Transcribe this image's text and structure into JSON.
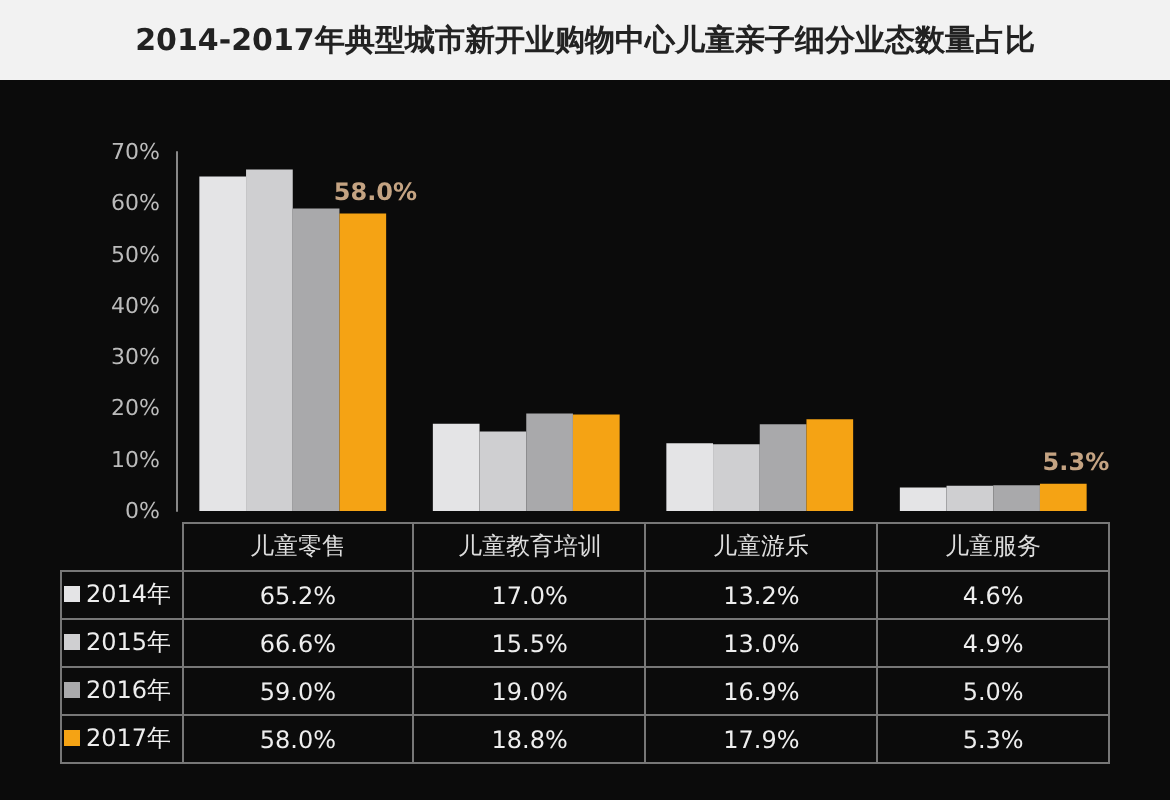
{
  "chart_data": {
    "type": "bar",
    "title": "2014-2017年典型城市新开业购物中心儿童亲子细分业态数量占比",
    "categories": [
      "儿童零售",
      "儿童教育培训",
      "儿童游乐",
      "儿童服务"
    ],
    "series": [
      {
        "name": "2014年",
        "color": "#e4e4e6",
        "values": [
          65.2,
          17.0,
          13.2,
          4.6
        ],
        "value_labels": [
          "65.2%",
          "17.0%",
          "13.2%",
          "4.6%"
        ]
      },
      {
        "name": "2015年",
        "color": "#cfcfd1",
        "values": [
          66.6,
          15.5,
          13.0,
          4.9
        ],
        "value_labels": [
          "66.6%",
          "15.5%",
          "13.0%",
          "4.9%"
        ]
      },
      {
        "name": "2016年",
        "color": "#a9a9ab",
        "values": [
          59.0,
          19.0,
          16.9,
          5.0
        ],
        "value_labels": [
          "59.0%",
          "19.0%",
          "16.9%",
          "5.0%"
        ]
      },
      {
        "name": "2017年",
        "color": "#f5a314",
        "values": [
          58.0,
          18.8,
          17.9,
          5.3
        ],
        "value_labels": [
          "58.0%",
          "18.8%",
          "17.9%",
          "5.3%"
        ]
      }
    ],
    "ylim": [
      0,
      70
    ],
    "yticks": [
      {
        "value": 0,
        "label": "0%"
      },
      {
        "value": 10,
        "label": "10%"
      },
      {
        "value": 20,
        "label": "20%"
      },
      {
        "value": 30,
        "label": "30%"
      },
      {
        "value": 40,
        "label": "40%"
      },
      {
        "value": 50,
        "label": "50%"
      },
      {
        "value": 60,
        "label": "60%"
      },
      {
        "value": 70,
        "label": "70%"
      }
    ],
    "annotations": [
      {
        "text": "58.0%",
        "x": "儿童零售",
        "y": 58.0
      },
      {
        "text": "5.3%",
        "x": "儿童服务",
        "y": 5.3
      }
    ],
    "grid": false,
    "legend": "bottom"
  }
}
